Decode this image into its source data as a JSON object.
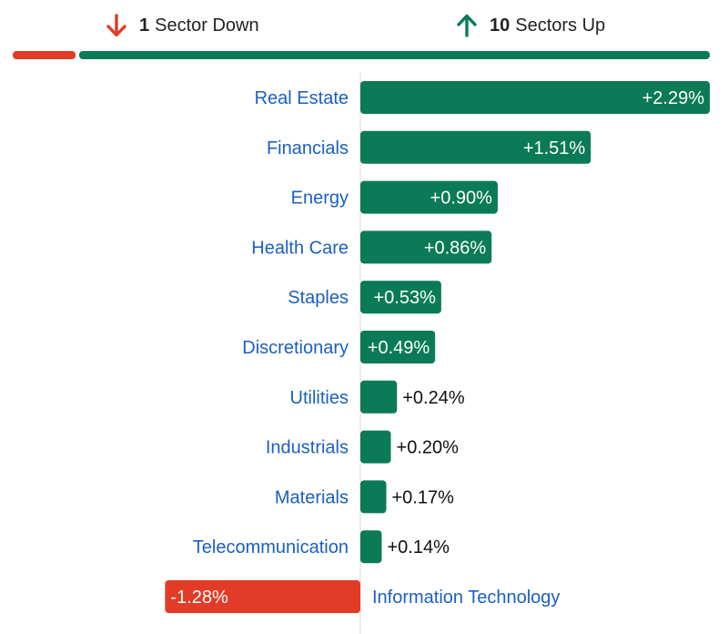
{
  "summary": {
    "down_count": "1",
    "down_label": "Sector Down",
    "up_count": "10",
    "up_label": "Sectors Up",
    "down_sectors": 1,
    "up_sectors": 10
  },
  "colors": {
    "positive": "#0b7a57",
    "negative": "#e23b27",
    "category_label": "#1b5fc1",
    "value_label_outside": "#111111",
    "value_label_inside": "#ffffff"
  },
  "chart_data": {
    "type": "bar",
    "orientation": "horizontal",
    "title": "",
    "xlabel": "",
    "ylabel": "",
    "unit": "%",
    "categories": [
      "Real Estate",
      "Financials",
      "Energy",
      "Health Care",
      "Staples",
      "Discretionary",
      "Utilities",
      "Industrials",
      "Materials",
      "Telecommunication",
      "Information Technology"
    ],
    "values": [
      2.29,
      1.51,
      0.9,
      0.86,
      0.53,
      0.49,
      0.24,
      0.2,
      0.17,
      0.14,
      -1.28
    ],
    "value_labels": [
      "+2.29%",
      "+1.51%",
      "+0.90%",
      "+0.86%",
      "+0.53%",
      "+0.49%",
      "+0.24%",
      "+0.20%",
      "+0.17%",
      "+0.14%",
      "-1.28%"
    ],
    "xlim": [
      -1.28,
      2.29
    ],
    "grid": false,
    "legend": "none"
  }
}
